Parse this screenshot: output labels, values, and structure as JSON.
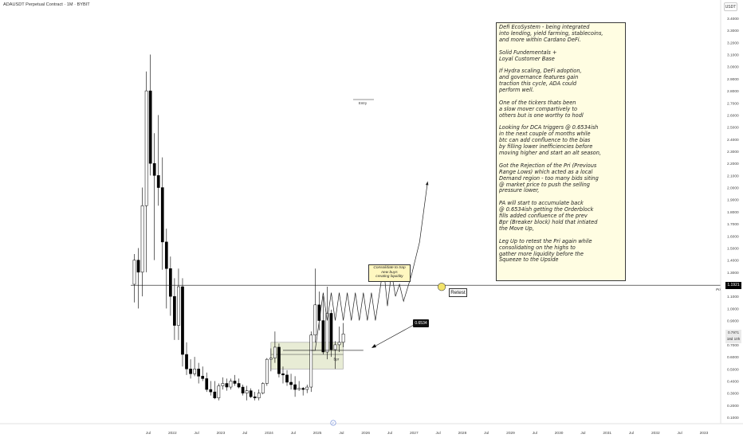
{
  "header": {
    "symbol_title": "ADAUSDT Perpetual Contract · 1M · BYBIT",
    "currency_badge": "USDT"
  },
  "chart_data": {
    "type": "candlestick",
    "x_ticks": [
      "Jul",
      "2022",
      "Jul",
      "2023",
      "Jul",
      "2024",
      "Jul",
      "2025",
      "Jul",
      "2026",
      "Jul",
      "2027",
      "Jul",
      "2028",
      "Jul",
      "2029",
      "Jul",
      "2030",
      "Jul",
      "2031",
      "Jul",
      "2032",
      "Jul",
      "2033"
    ],
    "y_ticks": [
      "3.4000",
      "3.3000",
      "3.2000",
      "3.1000",
      "3.0000",
      "2.9000",
      "2.8000",
      "2.7000",
      "2.6000",
      "2.5000",
      "2.4000",
      "2.3000",
      "2.2000",
      "2.1000",
      "2.0000",
      "1.9000",
      "1.8000",
      "1.7000",
      "1.6000",
      "1.5000",
      "1.4000",
      "1.3000",
      "1.2000",
      "1.1000",
      "1.0000",
      "0.9000",
      "0.8000",
      "0.7000",
      "0.6000",
      "0.5000",
      "0.4000",
      "0.3000",
      "0.2000",
      "0.1000"
    ],
    "candles": [
      {
        "o": 1.2,
        "h": 1.45,
        "l": 1.05,
        "c": 1.4
      },
      {
        "o": 1.4,
        "h": 1.5,
        "l": 1.0,
        "c": 1.3
      },
      {
        "o": 1.3,
        "h": 2.0,
        "l": 1.1,
        "c": 1.85
      },
      {
        "o": 1.85,
        "h": 2.96,
        "l": 1.3,
        "c": 2.8
      },
      {
        "o": 2.8,
        "h": 3.1,
        "l": 2.1,
        "c": 2.2
      },
      {
        "o": 2.2,
        "h": 2.45,
        "l": 1.4,
        "c": 2.1
      },
      {
        "o": 2.1,
        "h": 2.6,
        "l": 1.85,
        "c": 2.0
      },
      {
        "o": 2.0,
        "h": 2.25,
        "l": 1.32,
        "c": 1.55
      },
      {
        "o": 1.55,
        "h": 1.66,
        "l": 1.0,
        "c": 1.33
      },
      {
        "o": 1.33,
        "h": 1.43,
        "l": 0.94,
        "c": 1.1
      },
      {
        "o": 1.1,
        "h": 1.25,
        "l": 0.74,
        "c": 0.86
      },
      {
        "o": 0.86,
        "h": 1.33,
        "l": 0.74,
        "c": 1.18
      },
      {
        "o": 1.18,
        "h": 1.25,
        "l": 0.52,
        "c": 0.62
      },
      {
        "o": 0.62,
        "h": 0.72,
        "l": 0.45,
        "c": 0.5
      },
      {
        "o": 0.5,
        "h": 0.58,
        "l": 0.42,
        "c": 0.46
      },
      {
        "o": 0.46,
        "h": 0.6,
        "l": 0.44,
        "c": 0.5
      },
      {
        "o": 0.5,
        "h": 0.55,
        "l": 0.38,
        "c": 0.44
      },
      {
        "o": 0.44,
        "h": 0.52,
        "l": 0.4,
        "c": 0.42
      },
      {
        "o": 0.42,
        "h": 0.47,
        "l": 0.31,
        "c": 0.33
      },
      {
        "o": 0.33,
        "h": 0.4,
        "l": 0.28,
        "c": 0.31
      },
      {
        "o": 0.31,
        "h": 0.4,
        "l": 0.25,
        "c": 0.26
      },
      {
        "o": 0.26,
        "h": 0.38,
        "l": 0.24,
        "c": 0.36
      },
      {
        "o": 0.36,
        "h": 0.43,
        "l": 0.33,
        "c": 0.38
      },
      {
        "o": 0.38,
        "h": 0.42,
        "l": 0.32,
        "c": 0.35
      },
      {
        "o": 0.35,
        "h": 0.42,
        "l": 0.33,
        "c": 0.4
      },
      {
        "o": 0.4,
        "h": 0.45,
        "l": 0.36,
        "c": 0.38
      },
      {
        "o": 0.38,
        "h": 0.42,
        "l": 0.34,
        "c": 0.35
      },
      {
        "o": 0.35,
        "h": 0.37,
        "l": 0.28,
        "c": 0.3
      },
      {
        "o": 0.3,
        "h": 0.36,
        "l": 0.24,
        "c": 0.32
      },
      {
        "o": 0.32,
        "h": 0.34,
        "l": 0.26,
        "c": 0.27
      },
      {
        "o": 0.27,
        "h": 0.31,
        "l": 0.24,
        "c": 0.26
      },
      {
        "o": 0.26,
        "h": 0.33,
        "l": 0.24,
        "c": 0.3
      },
      {
        "o": 0.3,
        "h": 0.39,
        "l": 0.29,
        "c": 0.38
      },
      {
        "o": 0.38,
        "h": 0.59,
        "l": 0.36,
        "c": 0.58
      },
      {
        "o": 0.58,
        "h": 0.67,
        "l": 0.48,
        "c": 0.59
      },
      {
        "o": 0.59,
        "h": 0.81,
        "l": 0.55,
        "c": 0.68
      },
      {
        "o": 0.68,
        "h": 0.71,
        "l": 0.43,
        "c": 0.46
      },
      {
        "o": 0.46,
        "h": 0.52,
        "l": 0.38,
        "c": 0.45
      },
      {
        "o": 0.45,
        "h": 0.49,
        "l": 0.36,
        "c": 0.39
      },
      {
        "o": 0.39,
        "h": 0.46,
        "l": 0.33,
        "c": 0.37
      },
      {
        "o": 0.37,
        "h": 0.44,
        "l": 0.27,
        "c": 0.33
      },
      {
        "o": 0.33,
        "h": 0.4,
        "l": 0.32,
        "c": 0.34
      },
      {
        "o": 0.34,
        "h": 0.35,
        "l": 0.28,
        "c": 0.33
      },
      {
        "o": 0.33,
        "h": 0.37,
        "l": 0.3,
        "c": 0.35
      },
      {
        "o": 0.35,
        "h": 0.81,
        "l": 0.31,
        "c": 0.78
      },
      {
        "o": 0.78,
        "h": 1.33,
        "l": 0.72,
        "c": 1.03
      },
      {
        "o": 1.03,
        "h": 1.14,
        "l": 0.82,
        "c": 0.9
      },
      {
        "o": 0.9,
        "h": 1.1,
        "l": 0.62,
        "c": 0.64
      },
      {
        "o": 0.64,
        "h": 1.18,
        "l": 0.58,
        "c": 0.96
      },
      {
        "o": 0.96,
        "h": 0.99,
        "l": 0.6,
        "c": 0.66
      },
      {
        "o": 0.66,
        "h": 0.73,
        "l": 0.5,
        "c": 0.7
      },
      {
        "o": 0.7,
        "h": 0.85,
        "l": 0.64,
        "c": 0.72
      },
      {
        "o": 0.72,
        "h": 0.88,
        "l": 0.68,
        "c": 0.79
      }
    ],
    "drawings": {
      "entry_label": "Entry",
      "price_tag": "0.6534",
      "consolidate_note": [
        "Consolidate to trap",
        "new buys",
        "creating liquidity"
      ],
      "retest_label": "Retest",
      "pri_label": "Pri",
      "pri_level": 1.1921,
      "pri_price_label": "1.1921",
      "current_price_label": "0.7971",
      "countdown_label": "18d 10h",
      "bpr_label": "Bpr",
      "bpr_zone": [
        0.5,
        0.72
      ],
      "projected_path": [
        [
          44,
          0.6534
        ],
        [
          45,
          0.6534
        ],
        [
          47,
          1.13
        ],
        [
          48,
          0.9
        ],
        [
          49,
          1.13
        ],
        [
          50,
          0.9
        ],
        [
          51,
          1.13
        ],
        [
          52,
          0.9
        ],
        [
          53,
          1.13
        ],
        [
          54,
          0.9
        ],
        [
          55,
          1.13
        ],
        [
          56,
          0.9
        ],
        [
          57,
          1.13
        ],
        [
          58,
          0.9
        ],
        [
          59,
          1.13
        ],
        [
          60,
          0.9
        ],
        [
          62,
          1.35
        ],
        [
          63,
          1.02
        ],
        [
          64,
          1.3
        ],
        [
          65,
          1.1
        ],
        [
          66,
          1.2
        ],
        [
          67,
          1.06
        ],
        [
          69,
          1.28
        ],
        [
          71,
          1.55
        ],
        [
          73,
          2.05
        ]
      ]
    }
  },
  "annotation": {
    "paragraphs": [
      "Defi EcoSystem -  being integrated\ninto lending, yield farming, stablecoins,\nand more within Cardano DeFi.",
      "Solid Fundementals +\nLoyal Customer Base",
      "If Hydra scaling, DeFi adoption,\nand governance features gain\ntraction this cycle, ADA could\nperform well.",
      "One of the tickers thats been\na slow mover compartively to\nothers but is one worthy to hodl",
      "Looking for DCA triggers @ 0.6534ish\nin the next couple of months while\nbtc can add confluence to the bias\nby filling lower inefficiencies before\nmoving higher and start an alt season,",
      "Got the Rejection of the Pri (Previous\nRange Lows) which acted as a local\nDemand region - too many bids siting\n@ market price to push the selling\npressure lower,",
      "PA will start to accumulate back\n@ 0.6534ish getting the Orderblock\nfills added confluence of the prev\nBpr (Breaker block) hold that intiated\nthe Move Up,",
      "Leg Up to retest the Pri again while\nconsolidating on the highs to\ngather more liquidity before the\nSqueeze to the Upside"
    ]
  },
  "colors": {
    "candle_body_up": "#ffffff",
    "candle_body_down": "#000000",
    "wick": "#000000",
    "zone_fill": "#e8ecd5",
    "annotation_fill": "#fffde2",
    "note_fill": "#fff7c0",
    "retest_circle": "#f2e36b"
  }
}
